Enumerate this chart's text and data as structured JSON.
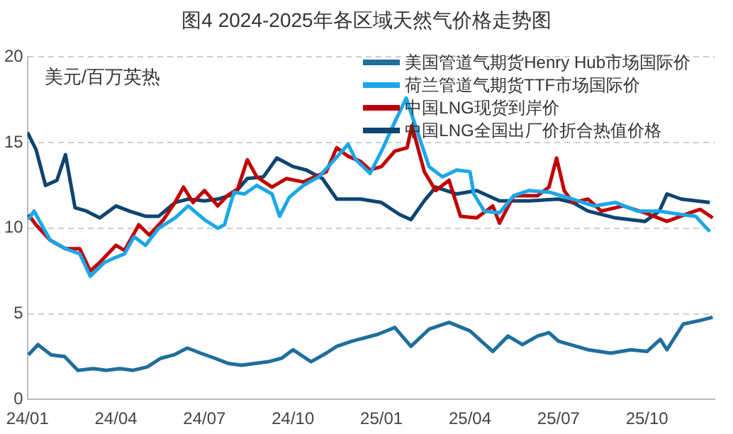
{
  "chart_data": {
    "type": "line",
    "title": "图4 2024-2025年各区域天然气价格走势图",
    "ylabel": "美元/百万英热",
    "xlim": [
      "2024-01-01",
      "2025-12-10"
    ],
    "xticks": [
      {
        "value": "2024-01",
        "label": "24/01"
      },
      {
        "value": "2024-04",
        "label": "24/04"
      },
      {
        "value": "2024-07",
        "label": "24/07"
      },
      {
        "value": "2024-10",
        "label": "24/10"
      },
      {
        "value": "2025-01",
        "label": "25/01"
      },
      {
        "value": "2025-04",
        "label": "25/04"
      },
      {
        "value": "2025-07",
        "label": "25/07"
      },
      {
        "value": "2025-10",
        "label": "25/10"
      }
    ],
    "ylim": [
      0,
      20
    ],
    "yticks": [
      0,
      5,
      10,
      15,
      20
    ],
    "grid": "y",
    "legend": "top right",
    "marker": "none",
    "line_style": "solid",
    "series": [
      {
        "name": "美国管道气期货Henry Hub市场国际价",
        "color": "#1f6e9c",
        "x": [
          "2024-01-02",
          "2024-01-12",
          "2024-01-26",
          "2024-02-09",
          "2024-02-23",
          "2024-03-08",
          "2024-03-22",
          "2024-04-05",
          "2024-04-19",
          "2024-05-03",
          "2024-05-17",
          "2024-05-31",
          "2024-06-14",
          "2024-06-28",
          "2024-07-12",
          "2024-07-26",
          "2024-08-09",
          "2024-08-23",
          "2024-09-06",
          "2024-09-20",
          "2024-10-01",
          "2024-10-20",
          "2024-11-05",
          "2024-11-16",
          "2024-12-01",
          "2024-12-28",
          "2025-01-15",
          "2025-02-01",
          "2025-02-20",
          "2025-03-10",
          "2025-04-01",
          "2025-04-25",
          "2025-05-10",
          "2025-05-25",
          "2025-06-10",
          "2025-06-22",
          "2025-07-01",
          "2025-08-01",
          "2025-08-25",
          "2025-09-15",
          "2025-10-01",
          "2025-10-15",
          "2025-10-22",
          "2025-11-08",
          "2025-11-25",
          "2025-12-08"
        ],
        "values": [
          2.6,
          3.2,
          2.6,
          2.5,
          1.7,
          1.8,
          1.7,
          1.8,
          1.7,
          1.9,
          2.4,
          2.6,
          3.0,
          2.7,
          2.4,
          2.1,
          2.0,
          2.1,
          2.2,
          2.4,
          2.9,
          2.2,
          2.7,
          3.1,
          3.4,
          3.8,
          4.2,
          3.1,
          4.1,
          4.5,
          4.0,
          2.8,
          3.7,
          3.2,
          3.7,
          3.9,
          3.4,
          2.9,
          2.7,
          2.9,
          2.8,
          3.5,
          2.9,
          4.4,
          4.6,
          4.8
        ]
      },
      {
        "name": "荷兰管道气期货TTF市场国际价",
        "color": "#1aa7e8",
        "x": [
          "2024-01-02",
          "2024-01-08",
          "2024-01-25",
          "2024-02-10",
          "2024-02-25",
          "2024-03-05",
          "2024-03-20",
          "2024-04-01",
          "2024-04-10",
          "2024-04-20",
          "2024-05-01",
          "2024-05-15",
          "2024-06-01",
          "2024-06-15",
          "2024-07-01",
          "2024-07-15",
          "2024-07-22",
          "2024-08-01",
          "2024-08-12",
          "2024-08-25",
          "2024-09-10",
          "2024-09-18",
          "2024-09-28",
          "2024-10-12",
          "2024-10-28",
          "2024-11-12",
          "2024-11-28",
          "2024-12-05",
          "2024-12-20",
          "2025-01-01",
          "2025-01-15",
          "2025-01-27",
          "2025-02-08",
          "2025-02-20",
          "2025-03-03",
          "2025-03-18",
          "2025-04-01",
          "2025-04-05",
          "2025-04-16",
          "2025-05-01",
          "2025-05-16",
          "2025-06-01",
          "2025-06-23",
          "2025-07-16",
          "2025-08-07",
          "2025-08-30",
          "2025-09-22",
          "2025-10-14",
          "2025-11-06",
          "2025-11-21",
          "2025-12-05"
        ],
        "values": [
          10.5,
          11.0,
          9.3,
          8.8,
          8.5,
          7.2,
          8.0,
          8.3,
          8.5,
          9.5,
          9.0,
          10.0,
          10.6,
          11.3,
          10.5,
          10.0,
          10.2,
          12.1,
          12.0,
          12.5,
          12.0,
          10.7,
          11.8,
          12.5,
          13.0,
          13.9,
          14.9,
          14.0,
          13.2,
          14.5,
          16.2,
          17.6,
          15.6,
          13.6,
          13.0,
          13.4,
          13.3,
          12.0,
          11.0,
          10.9,
          11.9,
          12.2,
          12.1,
          11.7,
          11.3,
          11.5,
          11.0,
          11.0,
          10.8,
          10.7,
          9.8
        ]
      },
      {
        "name": "中国LNG现货到岸价",
        "color": "#c00000",
        "x": [
          "2024-01-02",
          "2024-01-10",
          "2024-01-25",
          "2024-02-10",
          "2024-02-25",
          "2024-03-05",
          "2024-03-15",
          "2024-04-01",
          "2024-04-10",
          "2024-04-25",
          "2024-05-05",
          "2024-05-20",
          "2024-06-01",
          "2024-06-10",
          "2024-06-20",
          "2024-07-01",
          "2024-07-15",
          "2024-07-25",
          "2024-08-05",
          "2024-08-15",
          "2024-08-25",
          "2024-09-10",
          "2024-09-25",
          "2024-10-12",
          "2024-11-05",
          "2024-11-16",
          "2024-11-28",
          "2024-12-10",
          "2024-12-20",
          "2025-01-01",
          "2025-01-15",
          "2025-01-28",
          "2025-02-02",
          "2025-02-15",
          "2025-02-27",
          "2025-03-10",
          "2025-03-22",
          "2025-04-08",
          "2025-04-25",
          "2025-05-01",
          "2025-05-16",
          "2025-06-10",
          "2025-06-22",
          "2025-06-30",
          "2025-07-07",
          "2025-07-16",
          "2025-08-01",
          "2025-08-15",
          "2025-09-07",
          "2025-09-30",
          "2025-10-22",
          "2025-11-15",
          "2025-11-26",
          "2025-12-08"
        ],
        "values": [
          10.8,
          10.2,
          9.3,
          8.8,
          8.8,
          7.5,
          8.0,
          9.0,
          8.7,
          10.2,
          9.6,
          10.5,
          11.5,
          12.4,
          11.5,
          12.2,
          11.3,
          11.9,
          12.3,
          14.0,
          13.0,
          12.4,
          12.9,
          12.7,
          13.3,
          14.7,
          14.2,
          13.9,
          13.4,
          13.6,
          14.5,
          14.7,
          16.0,
          13.3,
          12.2,
          12.8,
          10.7,
          10.6,
          11.3,
          10.3,
          11.9,
          11.9,
          12.4,
          14.1,
          12.2,
          11.5,
          11.7,
          11.0,
          11.3,
          10.9,
          10.4,
          10.9,
          11.1,
          10.6
        ]
      },
      {
        "name": "中国LNG全国出厂价折合热值价格",
        "color": "#0e4470",
        "x": [
          "2024-01-01",
          "2024-01-10",
          "2024-01-20",
          "2024-02-01",
          "2024-02-10",
          "2024-02-20",
          "2024-03-01",
          "2024-03-15",
          "2024-04-01",
          "2024-04-15",
          "2024-05-01",
          "2024-05-15",
          "2024-06-01",
          "2024-06-15",
          "2024-07-01",
          "2024-07-15",
          "2024-08-01",
          "2024-08-15",
          "2024-09-01",
          "2024-09-15",
          "2024-10-01",
          "2024-10-15",
          "2024-11-01",
          "2024-11-16",
          "2024-12-10",
          "2025-01-01",
          "2025-01-20",
          "2025-02-01",
          "2025-02-15",
          "2025-02-27",
          "2025-03-18",
          "2025-04-08",
          "2025-05-01",
          "2025-06-01",
          "2025-07-01",
          "2025-07-16",
          "2025-08-01",
          "2025-08-30",
          "2025-09-30",
          "2025-10-14",
          "2025-10-22",
          "2025-11-06",
          "2025-12-05"
        ],
        "values": [
          15.6,
          14.6,
          12.5,
          12.8,
          14.3,
          11.2,
          11.0,
          10.6,
          11.3,
          11.0,
          10.7,
          10.7,
          11.5,
          11.7,
          11.6,
          11.7,
          12.0,
          12.9,
          13.0,
          14.1,
          13.6,
          13.4,
          12.9,
          11.7,
          11.7,
          11.5,
          10.8,
          10.5,
          11.6,
          12.4,
          12.0,
          12.2,
          11.6,
          11.6,
          11.7,
          11.5,
          11.0,
          10.6,
          10.4,
          11.0,
          12.0,
          11.7,
          11.5
        ]
      }
    ]
  }
}
